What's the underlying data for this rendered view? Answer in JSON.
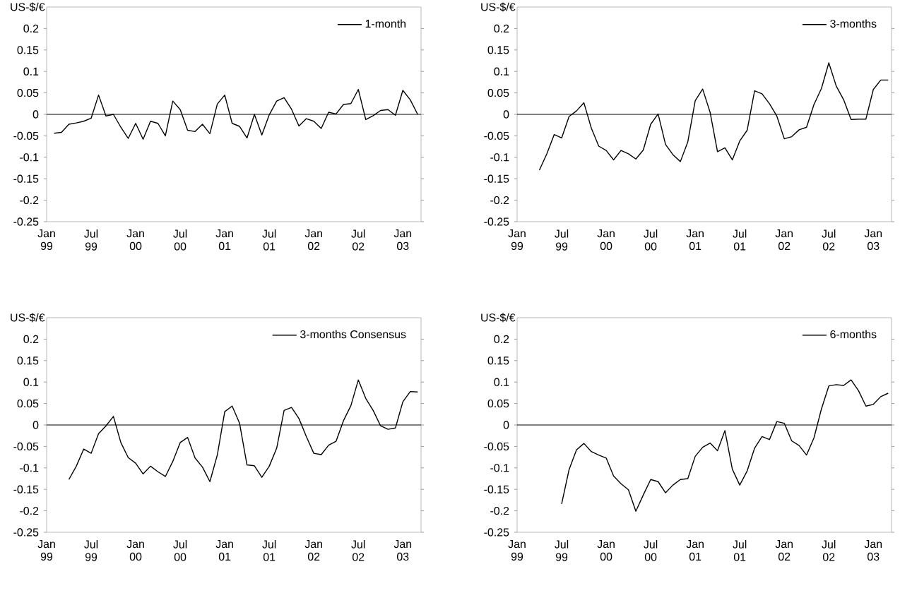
{
  "chart_data": [
    {
      "type": "line",
      "ylabel": "US-$/€",
      "legend": "top right",
      "x": [
        "1999-02",
        "1999-03",
        "1999-04",
        "1999-05",
        "1999-06",
        "1999-07",
        "1999-08",
        "1999-09",
        "1999-10",
        "1999-11",
        "1999-12",
        "2000-01",
        "2000-02",
        "2000-03",
        "2000-04",
        "2000-05",
        "2000-06",
        "2000-07",
        "2000-08",
        "2000-09",
        "2000-10",
        "2000-11",
        "2000-12",
        "2001-01",
        "2001-02",
        "2001-03",
        "2001-04",
        "2001-05",
        "2001-06",
        "2001-07",
        "2001-08",
        "2001-09",
        "2001-10",
        "2001-11",
        "2001-12",
        "2002-01",
        "2002-02",
        "2002-03",
        "2002-04",
        "2002-05",
        "2002-06",
        "2002-07",
        "2002-08",
        "2002-09",
        "2002-10",
        "2002-11",
        "2002-12",
        "2003-01",
        "2003-02",
        "2003-03"
      ],
      "series": [
        {
          "name": "1-month",
          "color": "#000000",
          "values": [
            -0.044,
            -0.042,
            -0.023,
            -0.02,
            -0.016,
            -0.009,
            0.045,
            -0.004,
            0.0,
            -0.03,
            -0.056,
            -0.021,
            -0.058,
            -0.016,
            -0.021,
            -0.05,
            0.031,
            0.011,
            -0.037,
            -0.04,
            -0.023,
            -0.045,
            0.024,
            0.045,
            -0.021,
            -0.028,
            -0.055,
            0.0,
            -0.048,
            -0.001,
            0.031,
            0.039,
            0.012,
            -0.027,
            -0.01,
            -0.016,
            -0.033,
            0.005,
            0.001,
            0.023,
            0.025,
            0.058,
            -0.012,
            -0.003,
            0.009,
            0.011,
            -0.002,
            0.056,
            0.034,
            0.0
          ]
        }
      ],
      "xlim": [
        "1999-01",
        "2003-03-15"
      ],
      "ylim": [
        -0.25,
        0.25
      ],
      "xticks": [
        {
          "value": "1999-01",
          "label": "Jan 99"
        },
        {
          "value": "1999-07",
          "label": "Jul 99"
        },
        {
          "value": "2000-01",
          "label": "Jan 00"
        },
        {
          "value": "2000-07",
          "label": "Jul 00"
        },
        {
          "value": "2001-01",
          "label": "Jan 01"
        },
        {
          "value": "2001-07",
          "label": "Jul 01"
        },
        {
          "value": "2002-01",
          "label": "Jan 02"
        },
        {
          "value": "2002-07",
          "label": "Jul 02"
        },
        {
          "value": "2003-01",
          "label": "Jan 03"
        }
      ],
      "yticks": [
        -0.25,
        -0.2,
        -0.15,
        -0.1,
        -0.05,
        0,
        0.05,
        0.1,
        0.15,
        0.2
      ],
      "ref_lines": [
        {
          "axis": "y",
          "value": 0
        }
      ]
    },
    {
      "type": "line",
      "ylabel": "US-$/€",
      "legend": "top right",
      "x": [
        "1999-04",
        "1999-05",
        "1999-06",
        "1999-07",
        "1999-08",
        "1999-09",
        "1999-10",
        "1999-11",
        "1999-12",
        "2000-01",
        "2000-02",
        "2000-03",
        "2000-04",
        "2000-05",
        "2000-06",
        "2000-07",
        "2000-08",
        "2000-09",
        "2000-10",
        "2000-11",
        "2000-12",
        "2001-01",
        "2001-02",
        "2001-03",
        "2001-04",
        "2001-05",
        "2001-06",
        "2001-07",
        "2001-08",
        "2001-09",
        "2001-10",
        "2001-11",
        "2001-12",
        "2002-01",
        "2002-02",
        "2002-03",
        "2002-04",
        "2002-05",
        "2002-06",
        "2002-07",
        "2002-08",
        "2002-09",
        "2002-10",
        "2002-11",
        "2002-12",
        "2003-01",
        "2003-02",
        "2003-03"
      ],
      "series": [
        {
          "name": "3-months",
          "color": "#000000",
          "values": [
            -0.13,
            -0.092,
            -0.047,
            -0.055,
            -0.005,
            0.008,
            0.027,
            -0.032,
            -0.074,
            -0.084,
            -0.106,
            -0.084,
            -0.092,
            -0.104,
            -0.083,
            -0.023,
            0.001,
            -0.07,
            -0.094,
            -0.11,
            -0.064,
            0.032,
            0.059,
            0.005,
            -0.087,
            -0.078,
            -0.106,
            -0.062,
            -0.037,
            0.055,
            0.048,
            0.025,
            -0.004,
            -0.057,
            -0.052,
            -0.036,
            -0.03,
            0.023,
            0.06,
            0.12,
            0.066,
            0.034,
            -0.012,
            -0.011,
            -0.011,
            0.058,
            0.08,
            0.08
          ]
        }
      ],
      "xlim": [
        "1999-01",
        "2003-03-15"
      ],
      "ylim": [
        -0.25,
        0.25
      ],
      "xticks": [
        {
          "value": "1999-01",
          "label": "Jan 99"
        },
        {
          "value": "1999-07",
          "label": "Jul 99"
        },
        {
          "value": "2000-01",
          "label": "Jan 00"
        },
        {
          "value": "2000-07",
          "label": "Jul 00"
        },
        {
          "value": "2001-01",
          "label": "Jan 01"
        },
        {
          "value": "2001-07",
          "label": "Jul 01"
        },
        {
          "value": "2002-01",
          "label": "Jan 02"
        },
        {
          "value": "2002-07",
          "label": "Jul 02"
        },
        {
          "value": "2003-01",
          "label": "Jan 03"
        }
      ],
      "yticks": [
        -0.25,
        -0.2,
        -0.15,
        -0.1,
        -0.05,
        0,
        0.05,
        0.1,
        0.15,
        0.2
      ],
      "ref_lines": [
        {
          "axis": "y",
          "value": 0
        }
      ]
    },
    {
      "type": "line",
      "ylabel": "US-$/€",
      "legend": "top right",
      "x": [
        "1999-04",
        "1999-05",
        "1999-06",
        "1999-07",
        "1999-08",
        "1999-09",
        "1999-10",
        "1999-11",
        "1999-12",
        "2000-01",
        "2000-02",
        "2000-03",
        "2000-04",
        "2000-05",
        "2000-06",
        "2000-07",
        "2000-08",
        "2000-09",
        "2000-10",
        "2000-11",
        "2000-12",
        "2001-01",
        "2001-02",
        "2001-03",
        "2001-04",
        "2001-05",
        "2001-06",
        "2001-07",
        "2001-08",
        "2001-09",
        "2001-10",
        "2001-11",
        "2001-12",
        "2002-01",
        "2002-02",
        "2002-03",
        "2002-04",
        "2002-05",
        "2002-06",
        "2002-07",
        "2002-08",
        "2002-09",
        "2002-10",
        "2002-11",
        "2002-12",
        "2003-01",
        "2003-02",
        "2003-03"
      ],
      "series": [
        {
          "name": "3-months Consensus",
          "color": "#000000",
          "values": [
            -0.127,
            -0.096,
            -0.056,
            -0.066,
            -0.02,
            -0.002,
            0.02,
            -0.041,
            -0.076,
            -0.089,
            -0.114,
            -0.096,
            -0.109,
            -0.12,
            -0.085,
            -0.041,
            -0.029,
            -0.077,
            -0.098,
            -0.132,
            -0.07,
            0.031,
            0.044,
            0.004,
            -0.093,
            -0.095,
            -0.122,
            -0.096,
            -0.054,
            0.034,
            0.041,
            0.015,
            -0.027,
            -0.066,
            -0.069,
            -0.047,
            -0.038,
            0.01,
            0.045,
            0.105,
            0.062,
            0.034,
            -0.002,
            -0.01,
            -0.007,
            0.054,
            0.078,
            0.077
          ]
        }
      ],
      "xlim": [
        "1999-01",
        "2003-03-15"
      ],
      "ylim": [
        -0.25,
        0.25
      ],
      "xticks": [
        {
          "value": "1999-01",
          "label": "Jan 99"
        },
        {
          "value": "1999-07",
          "label": "Jul 99"
        },
        {
          "value": "2000-01",
          "label": "Jan 00"
        },
        {
          "value": "2000-07",
          "label": "Jul 00"
        },
        {
          "value": "2001-01",
          "label": "Jan 01"
        },
        {
          "value": "2001-07",
          "label": "Jul 01"
        },
        {
          "value": "2002-01",
          "label": "Jan 02"
        },
        {
          "value": "2002-07",
          "label": "Jul 02"
        },
        {
          "value": "2003-01",
          "label": "Jan 03"
        }
      ],
      "yticks": [
        -0.25,
        -0.2,
        -0.15,
        -0.1,
        -0.05,
        0,
        0.05,
        0.1,
        0.15,
        0.2
      ],
      "ref_lines": [
        {
          "axis": "y",
          "value": 0
        }
      ]
    },
    {
      "type": "line",
      "ylabel": "US-$/€",
      "legend": "top right",
      "x": [
        "1999-07",
        "1999-08",
        "1999-09",
        "1999-10",
        "1999-11",
        "1999-12",
        "2000-01",
        "2000-02",
        "2000-03",
        "2000-04",
        "2000-05",
        "2000-06",
        "2000-07",
        "2000-08",
        "2000-09",
        "2000-10",
        "2000-11",
        "2000-12",
        "2001-01",
        "2001-02",
        "2001-03",
        "2001-04",
        "2001-05",
        "2001-06",
        "2001-07",
        "2001-08",
        "2001-09",
        "2001-10",
        "2001-11",
        "2001-12",
        "2002-01",
        "2002-02",
        "2002-03",
        "2002-04",
        "2002-05",
        "2002-06",
        "2002-07",
        "2002-08",
        "2002-09",
        "2002-10",
        "2002-11",
        "2002-12",
        "2003-01",
        "2003-02",
        "2003-03"
      ],
      "series": [
        {
          "name": "6-months",
          "color": "#000000",
          "values": [
            -0.184,
            -0.104,
            -0.058,
            -0.043,
            -0.062,
            -0.07,
            -0.077,
            -0.119,
            -0.137,
            -0.151,
            -0.201,
            -0.163,
            -0.127,
            -0.132,
            -0.158,
            -0.14,
            -0.127,
            -0.125,
            -0.073,
            -0.052,
            -0.042,
            -0.06,
            -0.013,
            -0.103,
            -0.14,
            -0.107,
            -0.054,
            -0.027,
            -0.034,
            0.008,
            0.004,
            -0.037,
            -0.048,
            -0.07,
            -0.03,
            0.037,
            0.091,
            0.094,
            0.092,
            0.105,
            0.08,
            0.044,
            0.048,
            0.066,
            0.074
          ]
        }
      ],
      "xlim": [
        "1999-01",
        "2003-03-15"
      ],
      "ylim": [
        -0.25,
        0.25
      ],
      "xticks": [
        {
          "value": "1999-01",
          "label": "Jan 99"
        },
        {
          "value": "1999-07",
          "label": "Jul 99"
        },
        {
          "value": "2000-01",
          "label": "Jan 00"
        },
        {
          "value": "2000-07",
          "label": "Jul 00"
        },
        {
          "value": "2001-01",
          "label": "Jan 01"
        },
        {
          "value": "2001-07",
          "label": "Jul 01"
        },
        {
          "value": "2002-01",
          "label": "Jan 02"
        },
        {
          "value": "2002-07",
          "label": "Jul 02"
        },
        {
          "value": "2003-01",
          "label": "Jan 03"
        }
      ],
      "yticks": [
        -0.25,
        -0.2,
        -0.15,
        -0.1,
        -0.05,
        0,
        0.05,
        0.1,
        0.15,
        0.2
      ],
      "ref_lines": [
        {
          "axis": "y",
          "value": 0
        }
      ]
    }
  ]
}
